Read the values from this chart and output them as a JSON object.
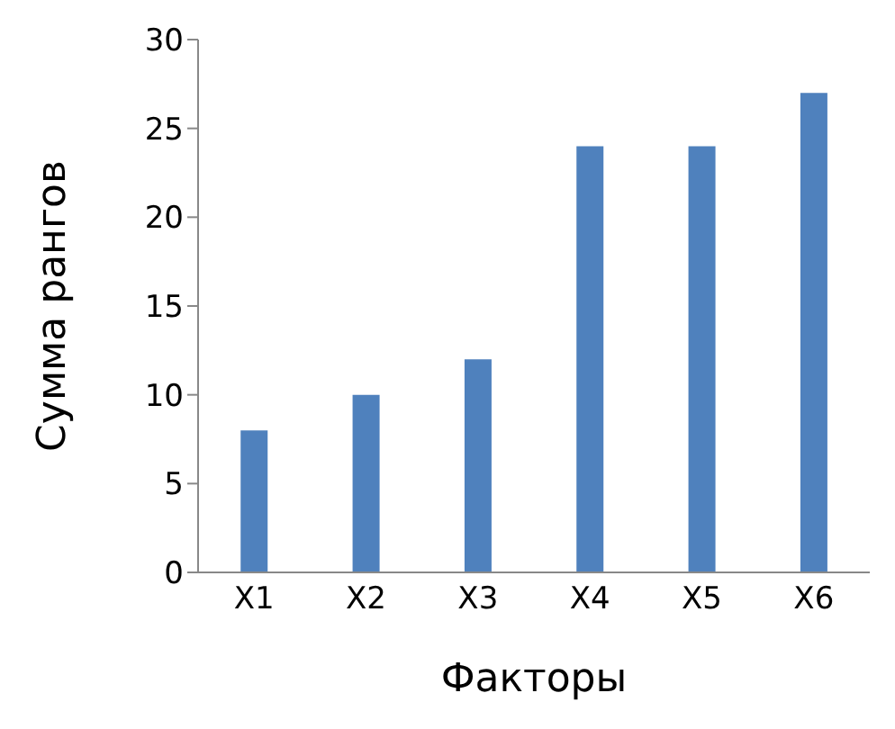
{
  "chart_data": {
    "type": "bar",
    "xlabel": "Факторы",
    "ylabel": "Сумма рангов",
    "categories": [
      "X1",
      "X2",
      "X3",
      "X4",
      "X5",
      "X6"
    ],
    "values": [
      8,
      10,
      12,
      24,
      24,
      27
    ],
    "color": "#4f81bd",
    "ylim": [
      0,
      30
    ],
    "yticks": [
      0,
      5,
      10,
      15,
      20,
      25,
      30
    ],
    "grid": false
  }
}
